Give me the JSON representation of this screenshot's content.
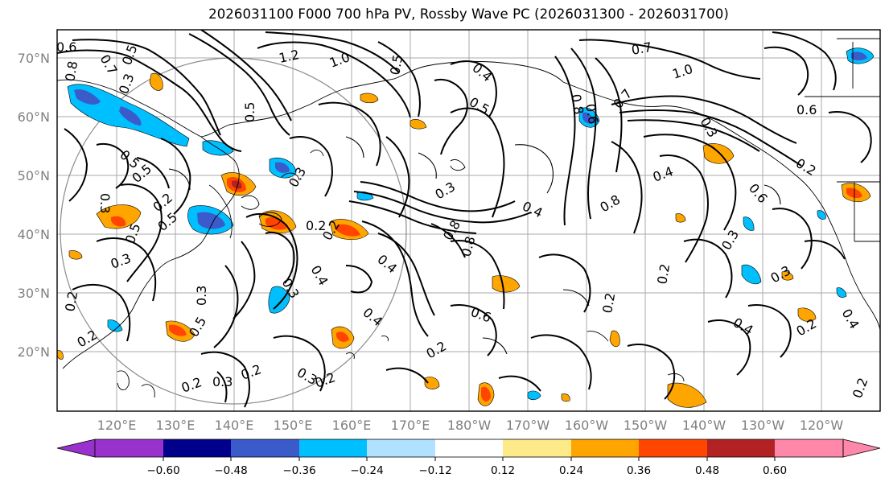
{
  "title": "2026031100 F000 700 hPa PV, Rossby Wave PC (2026031300 - 2026031700)",
  "lat_labels": [
    "70°N",
    "60°N",
    "50°N",
    "40°N",
    "30°N",
    "20°N"
  ],
  "lon_labels": [
    "120°E",
    "130°E",
    "140°E",
    "150°E",
    "160°E",
    "170°E",
    "180°W",
    "170°W",
    "160°W",
    "150°W",
    "140°W",
    "130°W",
    "120°W"
  ],
  "colorbar": {
    "ticks": [
      "−0.60",
      "−0.48",
      "−0.36",
      "−0.24",
      "−0.12",
      "0.12",
      "0.24",
      "0.36",
      "0.48",
      "0.60"
    ],
    "colors": [
      "#9932cc",
      "#00008b",
      "#3a5bc9",
      "#00bfff",
      "#b0e2ff",
      "#ffffff",
      "#ffea8a",
      "#ffa500",
      "#ff4500",
      "#b22222",
      "#ff88aa"
    ]
  },
  "contour_labels": [
    "0.6",
    "0.7",
    "0.8",
    "0.5",
    "0.3",
    "1.2",
    "1.0",
    "0.5",
    "0.4",
    "0.7",
    "1.0",
    "0.6",
    "0.8",
    "0.6",
    "0.5",
    "0.7",
    "0.3",
    "0.5",
    "0.5",
    "0.3",
    "0.2",
    "0.3",
    "0.3",
    "0.2",
    "0.4",
    "0.8",
    "0.4",
    "0.8",
    "0.6",
    "0.2",
    "0.5",
    "0.5",
    "0.3",
    "0.2",
    "0.8",
    "0.4",
    "0.4",
    "0.3",
    "0.2",
    "0.6",
    "0.3",
    "0.3",
    "0.4",
    "0.2",
    "0.3",
    "0.2",
    "0.5",
    "0.2",
    "0.4",
    "0.2",
    "0.4",
    "0.2",
    "0.3",
    "0.2",
    "0.2",
    "0.3",
    "0.2",
    "0.5",
    "0.2"
  ]
}
